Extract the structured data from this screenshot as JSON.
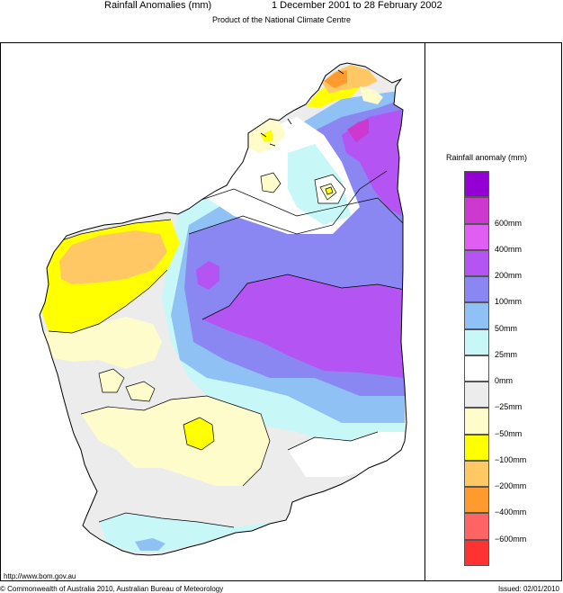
{
  "header": {
    "title": "Rainfall Anomalies (mm)",
    "period": "1 December 2001 to 28 February 2002",
    "subtitle": "Product of the National Climate Centre"
  },
  "legend": {
    "title": "Rainfall anomaly (mm)",
    "classes": [
      {
        "label": "",
        "color": "#9400d3"
      },
      {
        "label": "600mm",
        "color": "#cd38cf"
      },
      {
        "label": "400mm",
        "color": "#e15ef3"
      },
      {
        "label": "200mm",
        "color": "#b454f2"
      },
      {
        "label": "100mm",
        "color": "#8a86f2"
      },
      {
        "label": "50mm",
        "color": "#90c1f5"
      },
      {
        "label": "25mm",
        "color": "#c7f7f7"
      },
      {
        "label": "0mm",
        "color": "#ffffff"
      },
      {
        "label": "−25mm",
        "color": "#ececec"
      },
      {
        "label": "−50mm",
        "color": "#fffccb"
      },
      {
        "label": "−100mm",
        "color": "#ffff00"
      },
      {
        "label": "−200mm",
        "color": "#ffc864"
      },
      {
        "label": "−400mm",
        "color": "#ff9a2e"
      },
      {
        "label": "−600mm",
        "color": "#ff6464"
      },
      {
        "label": "",
        "color": "#ff3232"
      }
    ]
  },
  "footer": {
    "url": "http://www.bom.gov.au",
    "copyright": "© Commonwealth of Australia 2010, Australian Bureau of Meteorology",
    "issued": "Issued: 02/01/2010"
  }
}
